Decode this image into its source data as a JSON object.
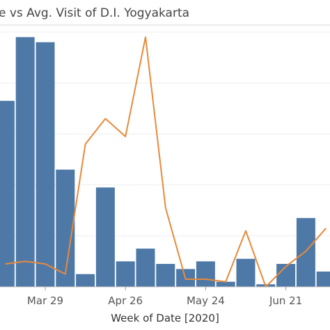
{
  "chart_data": {
    "type": "bar",
    "title": "e vs Avg. Visit of D.I. Yogyakarta",
    "xlabel": "Week of Date [2020]",
    "ylabel": "",
    "x_tick_labels": [
      {
        "label": "Mar 29",
        "at_week": 2.5
      },
      {
        "label": "Apr 26",
        "at_week": 6.5
      },
      {
        "label": "May 24",
        "at_week": 10.5
      },
      {
        "label": "Jun 21",
        "at_week": 14.5
      }
    ],
    "grid": true,
    "legend": "none",
    "ylim": [
      0,
      100
    ],
    "bar_color": "#4E79A7",
    "line_color": "#E8893A",
    "series": [
      {
        "type": "bar",
        "values": [
          73,
          98,
          96,
          46,
          5,
          39,
          10,
          15,
          9,
          7,
          10,
          2,
          11,
          1,
          9,
          27,
          6
        ]
      },
      {
        "type": "line",
        "values": [
          9,
          10,
          9,
          5,
          56,
          66,
          59,
          98,
          31,
          3,
          3,
          2,
          22,
          0,
          8,
          14,
          23
        ]
      }
    ]
  }
}
